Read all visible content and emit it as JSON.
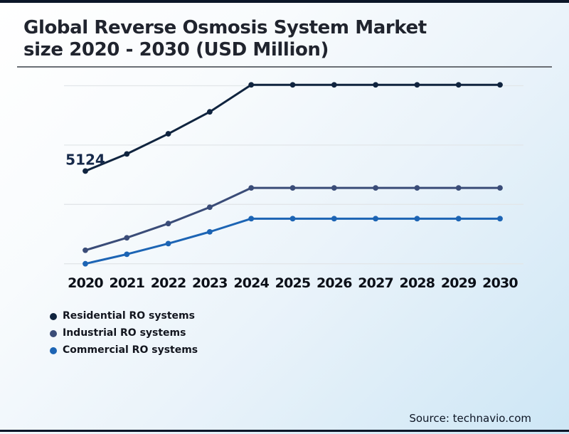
{
  "page": {
    "title_line1": "Global Reverse Osmosis System Market",
    "title_line2": "size 2020 - 2030 (USD Million)",
    "source": "Source: technavio.com"
  },
  "colors": {
    "residential": "#10243f",
    "industrial": "#3a4c78",
    "commercial": "#1c64b4",
    "gridline": "#e2e6e9",
    "title_text": "#20242e",
    "axis_label_text": "#0c1018",
    "data_label_text": "#16294a",
    "border_bars": "#0b1628",
    "divider": "#6a6f75"
  },
  "chart_data": {
    "type": "line",
    "title": "Global Reverse Osmosis System Market size 2020 - 2030 (USD Million)",
    "xlabel": "",
    "ylabel": "USD Million",
    "x": [
      2020,
      2021,
      2022,
      2023,
      2024,
      2025,
      2026,
      2027,
      2028,
      2029,
      2030
    ],
    "series": [
      {
        "name": "Residential RO systems",
        "slug": "residential",
        "color": "#10243f",
        "values": [
          5124,
          5700,
          6380,
          7120,
          8030,
          8030,
          8030,
          8030,
          8030,
          8030,
          8030
        ]
      },
      {
        "name": "Industrial RO systems",
        "slug": "industrial",
        "color": "#3a4c78",
        "values": [
          2455,
          2875,
          3355,
          3905,
          4555,
          4555,
          4555,
          4555,
          4555,
          4555,
          4555
        ]
      },
      {
        "name": "Commercial RO systems",
        "slug": "commercial",
        "color": "#1c64b4",
        "values": [
          2000,
          2320,
          2680,
          3075,
          3520,
          3520,
          3520,
          3520,
          3520,
          3520,
          3520
        ]
      }
    ],
    "annotations": [
      {
        "series": 0,
        "index": 0,
        "text": "5124"
      }
    ],
    "ylim": [
      1500,
      8600
    ],
    "gridline_values": [
      2000,
      4000,
      6000,
      8000
    ],
    "y_axis_labels_visible": false,
    "grid": "horizontal-only",
    "legend_position": "bottom-left",
    "marker": "circle"
  }
}
